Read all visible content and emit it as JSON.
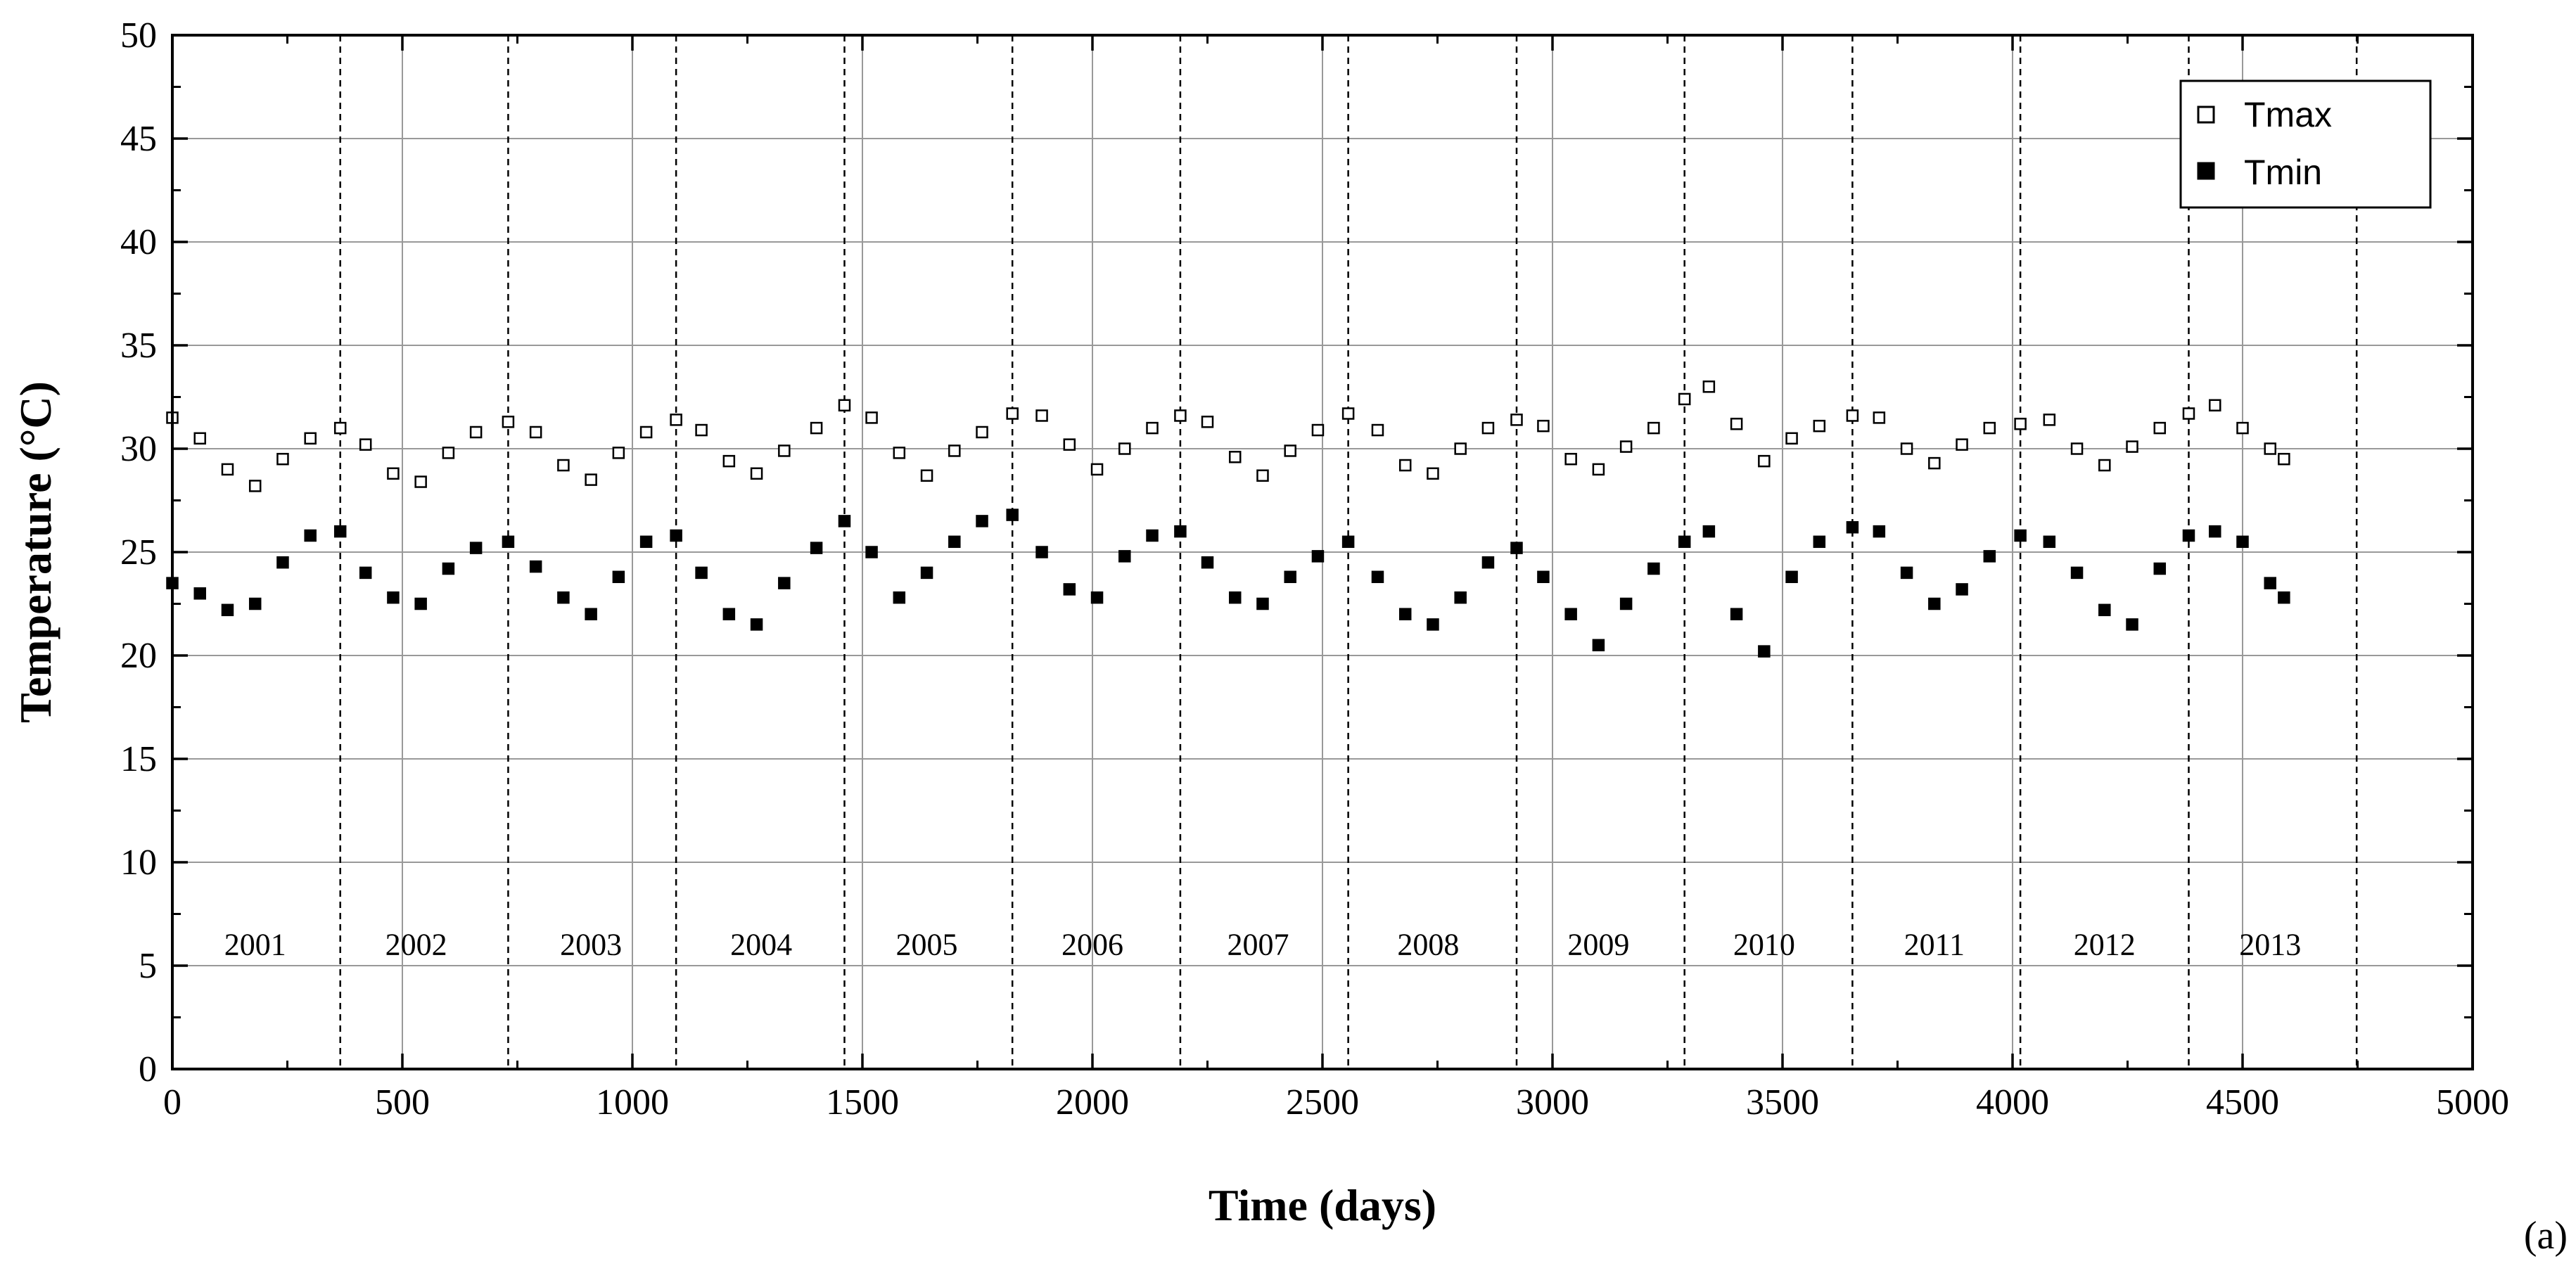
{
  "chart_data": {
    "type": "scatter",
    "title": "",
    "xlabel": "Time (days)",
    "ylabel": "Temperature (°C)",
    "xlim": [
      0,
      5000
    ],
    "ylim": [
      0,
      50
    ],
    "x_ticks": [
      0,
      500,
      1000,
      1500,
      2000,
      2500,
      3000,
      3500,
      4000,
      4500,
      5000
    ],
    "y_ticks": [
      0,
      5,
      10,
      15,
      20,
      25,
      30,
      35,
      40,
      45,
      50
    ],
    "grid": true,
    "legend_position": "top-right",
    "panel_label": "(a)",
    "year_boundaries": [
      365,
      730,
      1095,
      1461,
      1826,
      2191,
      2556,
      2922,
      3287,
      3652,
      4017,
      4383,
      4748
    ],
    "year_labels": [
      {
        "text": "2001",
        "x": 180
      },
      {
        "text": "2002",
        "x": 530
      },
      {
        "text": "2003",
        "x": 910
      },
      {
        "text": "2004",
        "x": 1280
      },
      {
        "text": "2005",
        "x": 1640
      },
      {
        "text": "2006",
        "x": 2000
      },
      {
        "text": "2007",
        "x": 2360
      },
      {
        "text": "2008",
        "x": 2730
      },
      {
        "text": "2009",
        "x": 3100
      },
      {
        "text": "2010",
        "x": 3460
      },
      {
        "text": "2011",
        "x": 3830
      },
      {
        "text": "2012",
        "x": 4200
      },
      {
        "text": "2013",
        "x": 4560
      }
    ],
    "series": [
      {
        "name": "Tmax",
        "marker": "open-square",
        "color": "#000000",
        "x": [
          0,
          60,
          120,
          180,
          240,
          300,
          365,
          420,
          480,
          540,
          600,
          660,
          730,
          790,
          850,
          910,
          970,
          1030,
          1095,
          1150,
          1210,
          1270,
          1330,
          1400,
          1461,
          1520,
          1580,
          1640,
          1700,
          1760,
          1826,
          1890,
          1950,
          2010,
          2070,
          2130,
          2191,
          2250,
          2310,
          2370,
          2430,
          2490,
          2556,
          2620,
          2680,
          2740,
          2800,
          2860,
          2922,
          2980,
          3040,
          3100,
          3160,
          3220,
          3287,
          3340,
          3400,
          3460,
          3520,
          3580,
          3652,
          3710,
          3770,
          3830,
          3890,
          3950,
          4017,
          4080,
          4140,
          4200,
          4260,
          4320,
          4383,
          4440,
          4500,
          4560,
          4590
        ],
        "y": [
          31.5,
          30.5,
          29.0,
          28.2,
          29.5,
          30.5,
          31.0,
          30.2,
          28.8,
          28.4,
          29.8,
          30.8,
          31.3,
          30.8,
          29.2,
          28.5,
          29.8,
          30.8,
          31.4,
          30.9,
          29.4,
          28.8,
          29.9,
          31.0,
          32.1,
          31.5,
          29.8,
          28.7,
          29.9,
          30.8,
          31.7,
          31.6,
          30.2,
          29.0,
          30.0,
          31.0,
          31.6,
          31.3,
          29.6,
          28.7,
          29.9,
          30.9,
          31.7,
          30.9,
          29.2,
          28.8,
          30.0,
          31.0,
          31.4,
          31.1,
          29.5,
          29.0,
          30.1,
          31.0,
          32.4,
          33.0,
          31.2,
          29.4,
          30.5,
          31.1,
          31.6,
          31.5,
          30.0,
          29.3,
          30.2,
          31.0,
          31.2,
          31.4,
          30.0,
          29.2,
          30.1,
          31.0,
          31.7,
          32.1,
          31.0,
          30.0,
          29.5
        ]
      },
      {
        "name": "Tmin",
        "marker": "filled-square",
        "color": "#000000",
        "x": [
          0,
          60,
          120,
          180,
          240,
          300,
          365,
          420,
          480,
          540,
          600,
          660,
          730,
          790,
          850,
          910,
          970,
          1030,
          1095,
          1150,
          1210,
          1270,
          1330,
          1400,
          1461,
          1520,
          1580,
          1640,
          1700,
          1760,
          1826,
          1890,
          1950,
          2010,
          2070,
          2130,
          2191,
          2250,
          2310,
          2370,
          2430,
          2490,
          2556,
          2620,
          2680,
          2740,
          2800,
          2860,
          2922,
          2980,
          3040,
          3100,
          3160,
          3220,
          3287,
          3340,
          3400,
          3460,
          3520,
          3580,
          3652,
          3710,
          3770,
          3830,
          3890,
          3950,
          4017,
          4080,
          4140,
          4200,
          4260,
          4320,
          4383,
          4440,
          4500,
          4560,
          4590
        ],
        "y": [
          23.5,
          23.0,
          22.2,
          22.5,
          24.5,
          25.8,
          26.0,
          24.0,
          22.8,
          22.5,
          24.2,
          25.2,
          25.5,
          24.3,
          22.8,
          22.0,
          23.8,
          25.5,
          25.8,
          24.0,
          22.0,
          21.5,
          23.5,
          25.2,
          26.5,
          25.0,
          22.8,
          24.0,
          25.5,
          26.5,
          26.8,
          25.0,
          23.2,
          22.8,
          24.8,
          25.8,
          26.0,
          24.5,
          22.8,
          22.5,
          23.8,
          24.8,
          25.5,
          23.8,
          22.0,
          21.5,
          22.8,
          24.5,
          25.2,
          23.8,
          22.0,
          20.5,
          22.5,
          24.2,
          25.5,
          26.0,
          22.0,
          20.2,
          23.8,
          25.5,
          26.2,
          26.0,
          24.0,
          22.5,
          23.2,
          24.8,
          25.8,
          25.5,
          24.0,
          22.2,
          21.5,
          24.2,
          25.8,
          26.0,
          25.5,
          23.5,
          22.8
        ]
      }
    ]
  }
}
